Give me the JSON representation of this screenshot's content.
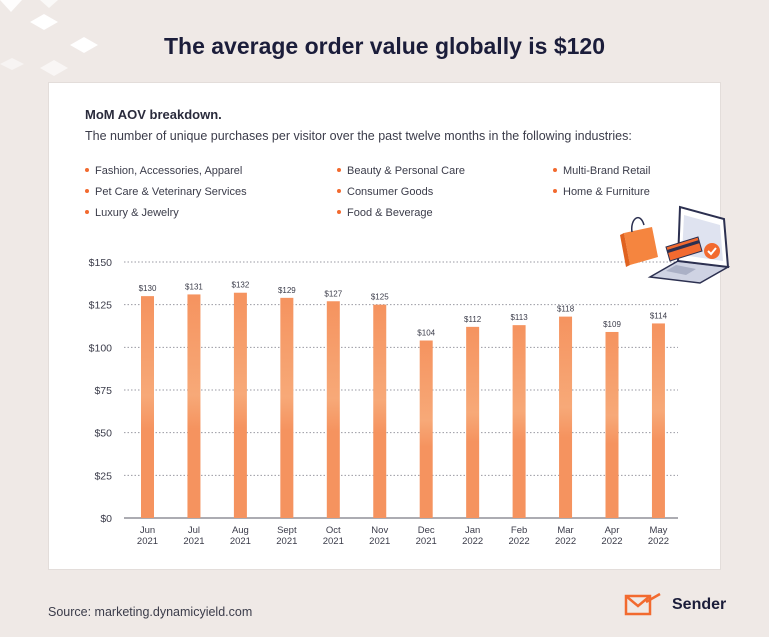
{
  "headline": "The average order value globally is $120",
  "card": {
    "title": "MoM AOV breakdown.",
    "subtitle": "The number of unique purchases per visitor over the past twelve months in the following industries:"
  },
  "legend_items": [
    "Fashion, Accessories, Apparel",
    "Beauty & Personal Care",
    "Multi-Brand Retail",
    "Pet Care & Veterinary Services",
    "Consumer Goods",
    "Home & Furniture",
    "Luxury & Jewelry",
    "Food & Beverage"
  ],
  "footer": {
    "source": "Source: marketing.dynamicyield.com",
    "brand": "Sender"
  },
  "colors": {
    "bar": "#f5935f",
    "accent": "#f26a2f",
    "grid": "#9a9aa3",
    "axis_text": "#3b3c4a"
  },
  "icons": [
    "shopping-bag-icon",
    "laptop-icon",
    "credit-card-icon",
    "checkmark-icon",
    "sender-logo-icon"
  ],
  "chart_data": {
    "type": "bar",
    "categories": [
      [
        "Jun",
        "2021"
      ],
      [
        "Jul",
        "2021"
      ],
      [
        "Aug",
        "2021"
      ],
      [
        "Sept",
        "2021"
      ],
      [
        "Oct",
        "2021"
      ],
      [
        "Nov",
        "2021"
      ],
      [
        "Dec",
        "2021"
      ],
      [
        "Jan",
        "2022"
      ],
      [
        "Feb",
        "2022"
      ],
      [
        "Mar",
        "2022"
      ],
      [
        "Apr",
        "2022"
      ],
      [
        "May",
        "2022"
      ]
    ],
    "values": [
      130,
      131,
      132,
      129,
      127,
      125,
      104,
      112,
      113,
      118,
      109,
      114
    ],
    "data_labels": [
      "$130",
      "$131",
      "$132",
      "$129",
      "$127",
      "$125",
      "$104",
      "$112",
      "$113",
      "$118",
      "$109",
      "$114"
    ],
    "y_ticks": [
      0,
      25,
      50,
      75,
      100,
      125,
      150
    ],
    "y_tick_labels": [
      "$0",
      "$25",
      "$50",
      "$75",
      "$100",
      "$125",
      "$150"
    ],
    "ylim": [
      0,
      150
    ],
    "grid": "dotted horizontal",
    "legend": "top"
  }
}
